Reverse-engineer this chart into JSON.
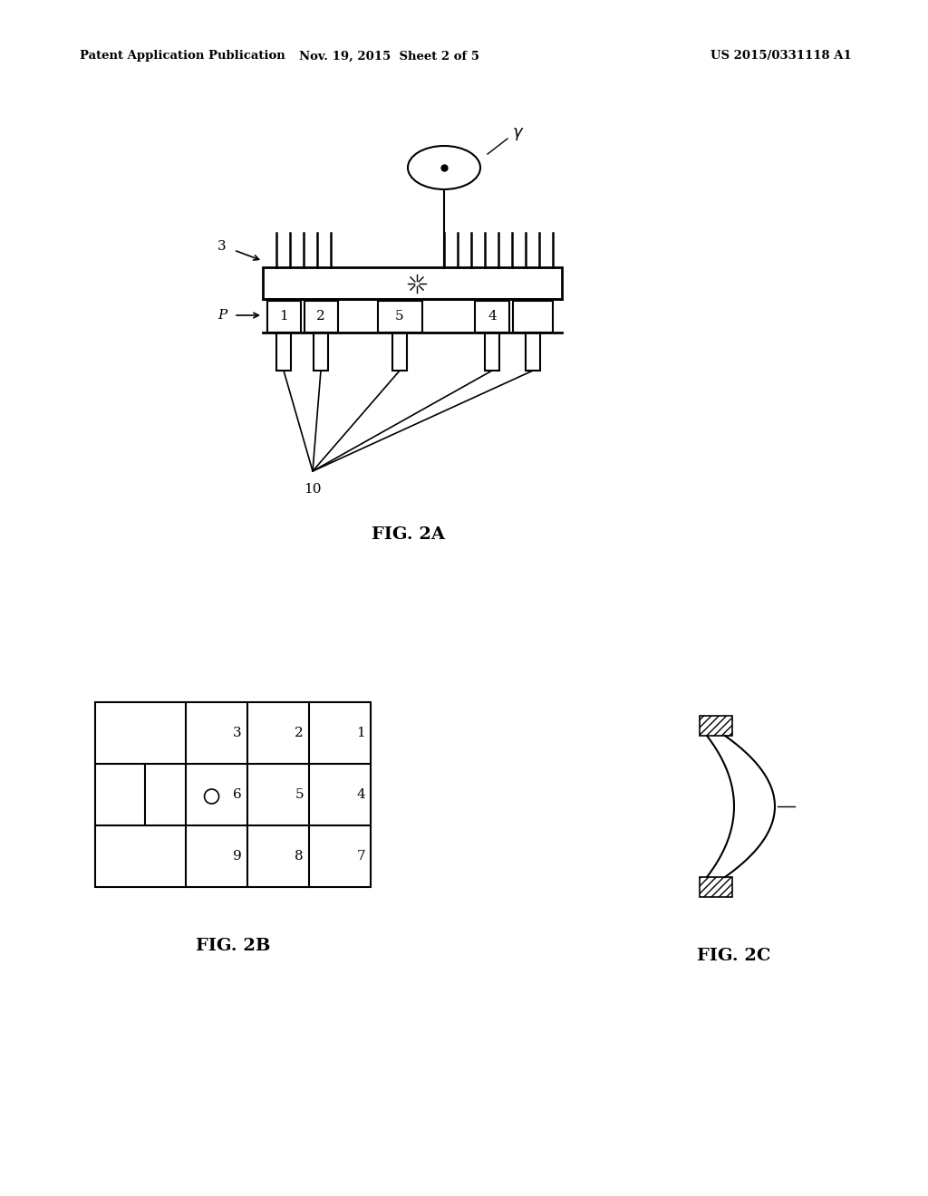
{
  "background_color": "#ffffff",
  "header_left": "Patent Application Publication",
  "header_center": "Nov. 19, 2015  Sheet 2 of 5",
  "header_right": "US 2015/0331118 A1",
  "fig2a_label": "FIG. 2A",
  "fig2b_label": "FIG. 2B",
  "fig2c_label": "FIG. 2C",
  "grid_numbers_row1": [
    "3",
    "2",
    "1"
  ],
  "grid_numbers_row2": [
    "6",
    "5",
    "4"
  ],
  "grid_numbers_row3": [
    "9",
    "8",
    "7"
  ]
}
